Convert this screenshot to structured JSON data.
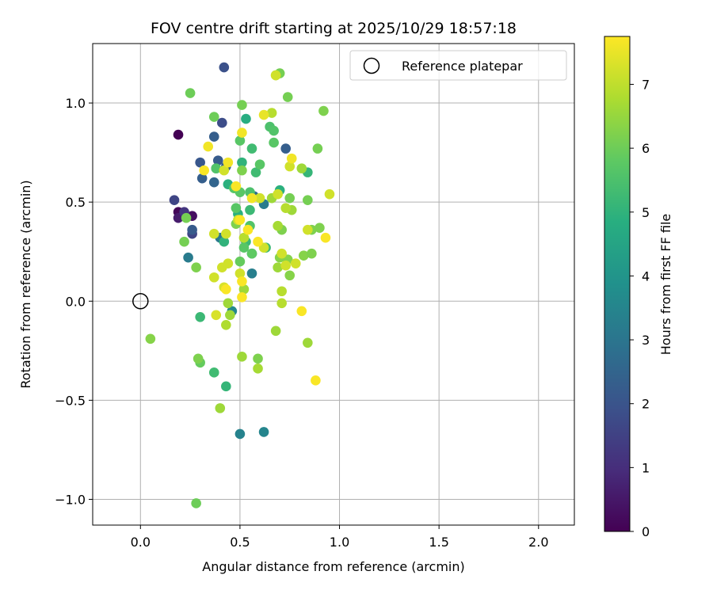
{
  "chart_data": {
    "type": "scatter",
    "title": "FOV centre drift starting at 2025/10/29 18:57:18",
    "xlabel": "Angular distance from reference (arcmin)",
    "ylabel": "Rotation from reference (arcmin)",
    "xlim": [
      -0.24,
      2.18
    ],
    "ylim": [
      -1.13,
      1.3
    ],
    "xticks": [
      0.0,
      0.5,
      1.0,
      1.5,
      2.0
    ],
    "xtick_labels": [
      "0.0",
      "0.5",
      "1.0",
      "1.5",
      "2.0"
    ],
    "yticks": [
      -1.0,
      -0.5,
      0.0,
      0.5,
      1.0
    ],
    "ytick_labels": [
      "−1.0",
      "−0.5",
      "0.0",
      "0.5",
      "1.0"
    ],
    "grid": true,
    "legend": {
      "position": "top-right",
      "entries": [
        "Reference platepar"
      ]
    },
    "reference_point": {
      "x": 0.0,
      "y": 0.0,
      "label": "Reference platepar"
    },
    "colorbar": {
      "label": "Hours from first FF file",
      "colormap": "viridis",
      "min": 0,
      "max": 7.75,
      "ticks": [
        0,
        1,
        2,
        3,
        4,
        5,
        6,
        7
      ],
      "tick_labels": [
        "0",
        "1",
        "2",
        "3",
        "4",
        "5",
        "6",
        "7"
      ]
    },
    "points": [
      {
        "x": 0.19,
        "y": 0.84,
        "hours": 0.0
      },
      {
        "x": 0.19,
        "y": 0.45,
        "hours": 0.1
      },
      {
        "x": 0.26,
        "y": 0.43,
        "hours": 0.3
      },
      {
        "x": 0.19,
        "y": 0.42,
        "hours": 0.6
      },
      {
        "x": 0.22,
        "y": 0.45,
        "hours": 1.2
      },
      {
        "x": 0.17,
        "y": 0.51,
        "hours": 1.6
      },
      {
        "x": 0.26,
        "y": 0.34,
        "hours": 1.6
      },
      {
        "x": 0.26,
        "y": 0.36,
        "hours": 2.2
      },
      {
        "x": 0.42,
        "y": 1.18,
        "hours": 1.9
      },
      {
        "x": 0.41,
        "y": 0.9,
        "hours": 1.8
      },
      {
        "x": 0.3,
        "y": 0.7,
        "hours": 2.1
      },
      {
        "x": 0.37,
        "y": 0.83,
        "hours": 2.3
      },
      {
        "x": 0.39,
        "y": 0.71,
        "hours": 2.2
      },
      {
        "x": 0.31,
        "y": 0.62,
        "hours": 2.3
      },
      {
        "x": 0.37,
        "y": 0.6,
        "hours": 2.5
      },
      {
        "x": 0.43,
        "y": 0.68,
        "hours": 2.4
      },
      {
        "x": 0.73,
        "y": 0.77,
        "hours": 2.3
      },
      {
        "x": 0.57,
        "y": 0.53,
        "hours": 2.7
      },
      {
        "x": 0.62,
        "y": 0.49,
        "hours": 3.2
      },
      {
        "x": 0.24,
        "y": 0.22,
        "hours": 3.2
      },
      {
        "x": 0.4,
        "y": 0.32,
        "hours": 3.1
      },
      {
        "x": 0.56,
        "y": 0.14,
        "hours": 3.3
      },
      {
        "x": 0.5,
        "y": -0.67,
        "hours": 3.4
      },
      {
        "x": 0.62,
        "y": -0.66,
        "hours": 3.5
      },
      {
        "x": 0.46,
        "y": -0.05,
        "hours": 3.6
      },
      {
        "x": 0.56,
        "y": 0.24,
        "hours": 3.7
      },
      {
        "x": 0.53,
        "y": 0.92,
        "hours": 4.8
      },
      {
        "x": 0.49,
        "y": 0.44,
        "hours": 4.9
      },
      {
        "x": 0.51,
        "y": 0.7,
        "hours": 5.0
      },
      {
        "x": 0.38,
        "y": 0.67,
        "hours": 5.0
      },
      {
        "x": 0.44,
        "y": 0.59,
        "hours": 4.9
      },
      {
        "x": 0.56,
        "y": 0.77,
        "hours": 5.3
      },
      {
        "x": 0.58,
        "y": 0.65,
        "hours": 5.3
      },
      {
        "x": 0.55,
        "y": 0.46,
        "hours": 5.2
      },
      {
        "x": 0.7,
        "y": 0.56,
        "hours": 4.9
      },
      {
        "x": 0.84,
        "y": 0.65,
        "hours": 5.1
      },
      {
        "x": 0.42,
        "y": 0.3,
        "hours": 5.0
      },
      {
        "x": 0.53,
        "y": 0.3,
        "hours": 5.2
      },
      {
        "x": 0.63,
        "y": 0.27,
        "hours": 5.2
      },
      {
        "x": 0.3,
        "y": -0.08,
        "hours": 5.2
      },
      {
        "x": 0.37,
        "y": -0.36,
        "hours": 5.3
      },
      {
        "x": 0.43,
        "y": -0.43,
        "hours": 5.1
      },
      {
        "x": 0.65,
        "y": 0.88,
        "hours": 5.5
      },
      {
        "x": 0.67,
        "y": 0.86,
        "hours": 5.6
      },
      {
        "x": 0.67,
        "y": 0.8,
        "hours": 5.7
      },
      {
        "x": 0.6,
        "y": 0.69,
        "hours": 5.7
      },
      {
        "x": 0.5,
        "y": 0.55,
        "hours": 5.7
      },
      {
        "x": 0.47,
        "y": 0.57,
        "hours": 5.7
      },
      {
        "x": 0.55,
        "y": 0.55,
        "hours": 5.5
      },
      {
        "x": 0.38,
        "y": 0.67,
        "hours": 5.6
      },
      {
        "x": 0.5,
        "y": 0.81,
        "hours": 5.7
      },
      {
        "x": 0.48,
        "y": 0.47,
        "hours": 5.7
      },
      {
        "x": 0.55,
        "y": 0.38,
        "hours": 5.6
      },
      {
        "x": 0.52,
        "y": 0.27,
        "hours": 5.7
      },
      {
        "x": 0.56,
        "y": 0.24,
        "hours": 5.8
      },
      {
        "x": 0.5,
        "y": 0.2,
        "hours": 5.9
      },
      {
        "x": 0.3,
        "y": -0.31,
        "hours": 5.9
      },
      {
        "x": 0.25,
        "y": 1.05,
        "hours": 6.0
      },
      {
        "x": 0.37,
        "y": 0.93,
        "hours": 6.0
      },
      {
        "x": 0.51,
        "y": 0.99,
        "hours": 6.1
      },
      {
        "x": 0.74,
        "y": 1.03,
        "hours": 6.1
      },
      {
        "x": 0.7,
        "y": 1.15,
        "hours": 6.1
      },
      {
        "x": 0.89,
        "y": 0.77,
        "hours": 6.1
      },
      {
        "x": 0.92,
        "y": 0.96,
        "hours": 6.2
      },
      {
        "x": 0.51,
        "y": 0.66,
        "hours": 6.2
      },
      {
        "x": 0.75,
        "y": 0.52,
        "hours": 6.1
      },
      {
        "x": 0.84,
        "y": 0.51,
        "hours": 6.1
      },
      {
        "x": 0.23,
        "y": 0.42,
        "hours": 6.1
      },
      {
        "x": 0.22,
        "y": 0.3,
        "hours": 6.1
      },
      {
        "x": 0.28,
        "y": 0.17,
        "hours": 6.2
      },
      {
        "x": 0.48,
        "y": 0.39,
        "hours": 6.2
      },
      {
        "x": 0.71,
        "y": 0.36,
        "hours": 6.2
      },
      {
        "x": 0.9,
        "y": 0.37,
        "hours": 6.2
      },
      {
        "x": 0.86,
        "y": 0.36,
        "hours": 6.2
      },
      {
        "x": 0.7,
        "y": 0.22,
        "hours": 6.3
      },
      {
        "x": 0.74,
        "y": 0.21,
        "hours": 6.3
      },
      {
        "x": 0.75,
        "y": 0.13,
        "hours": 6.3
      },
      {
        "x": 0.82,
        "y": 0.23,
        "hours": 6.3
      },
      {
        "x": 0.86,
        "y": 0.24,
        "hours": 6.2
      },
      {
        "x": 0.05,
        "y": -0.19,
        "hours": 6.3
      },
      {
        "x": 0.29,
        "y": -0.29,
        "hours": 6.2
      },
      {
        "x": 0.59,
        "y": -0.29,
        "hours": 6.2
      },
      {
        "x": 0.28,
        "y": -1.02,
        "hours": 6.0
      },
      {
        "x": 0.68,
        "y": 1.14,
        "hours": 6.6
      },
      {
        "x": 0.66,
        "y": 0.52,
        "hours": 6.6
      },
      {
        "x": 0.76,
        "y": 0.46,
        "hours": 6.6
      },
      {
        "x": 0.81,
        "y": 0.67,
        "hours": 6.6
      },
      {
        "x": 0.69,
        "y": 0.38,
        "hours": 6.7
      },
      {
        "x": 0.69,
        "y": 0.17,
        "hours": 6.6
      },
      {
        "x": 0.52,
        "y": 0.06,
        "hours": 6.6
      },
      {
        "x": 0.51,
        "y": -0.28,
        "hours": 6.6
      },
      {
        "x": 0.59,
        "y": -0.34,
        "hours": 6.7
      },
      {
        "x": 0.4,
        "y": -0.54,
        "hours": 6.6
      },
      {
        "x": 0.68,
        "y": -0.15,
        "hours": 6.6
      },
      {
        "x": 0.84,
        "y": -0.21,
        "hours": 6.6
      },
      {
        "x": 0.44,
        "y": -0.01,
        "hours": 6.6
      },
      {
        "x": 0.45,
        "y": -0.07,
        "hours": 6.6
      },
      {
        "x": 0.43,
        "y": -0.12,
        "hours": 6.8
      },
      {
        "x": 0.66,
        "y": 0.95,
        "hours": 6.9
      },
      {
        "x": 0.73,
        "y": 0.47,
        "hours": 6.9
      },
      {
        "x": 0.52,
        "y": 0.32,
        "hours": 6.9
      },
      {
        "x": 0.71,
        "y": 0.05,
        "hours": 6.9
      },
      {
        "x": 0.71,
        "y": -0.01,
        "hours": 6.9
      },
      {
        "x": 0.68,
        "y": 1.14,
        "hours": 7.2
      },
      {
        "x": 0.42,
        "y": 0.66,
        "hours": 7.2
      },
      {
        "x": 0.75,
        "y": 0.68,
        "hours": 7.2
      },
      {
        "x": 0.95,
        "y": 0.54,
        "hours": 7.2
      },
      {
        "x": 0.69,
        "y": 0.54,
        "hours": 7.2
      },
      {
        "x": 0.6,
        "y": 0.52,
        "hours": 7.2
      },
      {
        "x": 0.37,
        "y": 0.34,
        "hours": 7.2
      },
      {
        "x": 0.43,
        "y": 0.34,
        "hours": 7.2
      },
      {
        "x": 0.49,
        "y": 0.41,
        "hours": 7.2
      },
      {
        "x": 0.62,
        "y": 0.27,
        "hours": 7.2
      },
      {
        "x": 0.71,
        "y": 0.24,
        "hours": 7.2
      },
      {
        "x": 0.84,
        "y": 0.36,
        "hours": 7.2
      },
      {
        "x": 0.78,
        "y": 0.19,
        "hours": 7.2
      },
      {
        "x": 0.73,
        "y": 0.18,
        "hours": 7.2
      },
      {
        "x": 0.37,
        "y": 0.12,
        "hours": 7.2
      },
      {
        "x": 0.41,
        "y": 0.17,
        "hours": 7.2
      },
      {
        "x": 0.44,
        "y": 0.19,
        "hours": 7.2
      },
      {
        "x": 0.5,
        "y": 0.14,
        "hours": 7.2
      },
      {
        "x": 0.42,
        "y": 0.07,
        "hours": 7.3
      },
      {
        "x": 0.38,
        "y": -0.07,
        "hours": 7.3
      },
      {
        "x": 0.62,
        "y": 0.94,
        "hours": 7.5
      },
      {
        "x": 0.34,
        "y": 0.78,
        "hours": 7.6
      },
      {
        "x": 0.51,
        "y": 0.85,
        "hours": 7.6
      },
      {
        "x": 0.76,
        "y": 0.72,
        "hours": 7.6
      },
      {
        "x": 0.44,
        "y": 0.7,
        "hours": 7.6
      },
      {
        "x": 0.32,
        "y": 0.66,
        "hours": 7.7
      },
      {
        "x": 0.48,
        "y": 0.58,
        "hours": 7.7
      },
      {
        "x": 0.56,
        "y": 0.52,
        "hours": 7.6
      },
      {
        "x": 0.5,
        "y": 0.41,
        "hours": 7.7
      },
      {
        "x": 0.54,
        "y": 0.36,
        "hours": 7.7
      },
      {
        "x": 0.59,
        "y": 0.3,
        "hours": 7.7
      },
      {
        "x": 0.93,
        "y": 0.32,
        "hours": 7.7
      },
      {
        "x": 0.43,
        "y": 0.06,
        "hours": 7.7
      },
      {
        "x": 0.51,
        "y": 0.1,
        "hours": 7.7
      },
      {
        "x": 0.51,
        "y": 0.02,
        "hours": 7.7
      },
      {
        "x": 0.81,
        "y": -0.05,
        "hours": 7.7
      },
      {
        "x": 0.88,
        "y": -0.4,
        "hours": 7.7
      }
    ]
  }
}
